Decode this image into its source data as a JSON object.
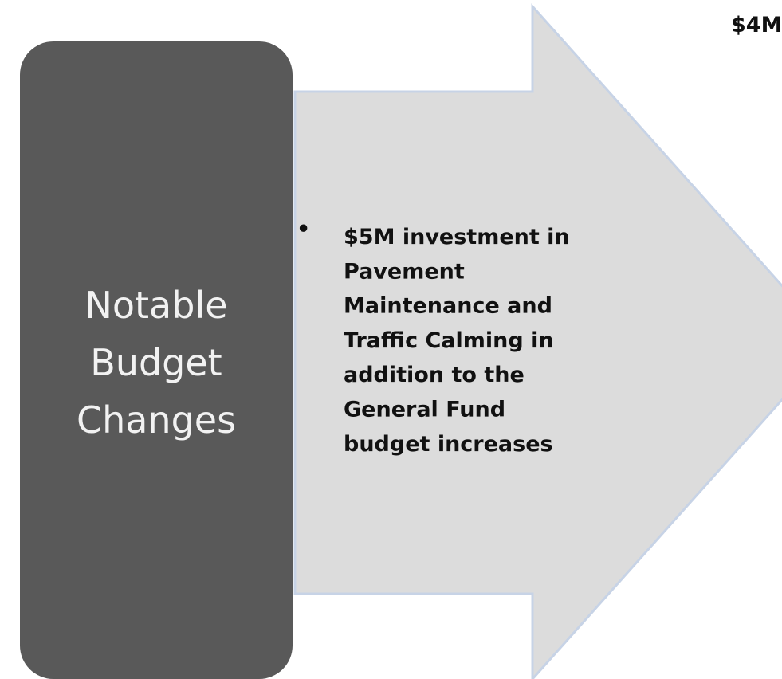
{
  "left_box": {
    "label_lines": [
      "Notable",
      "Budget",
      "Changes"
    ]
  },
  "arrow": {
    "bullet": "•",
    "text_lines": [
      "$5M investment in",
      "Pavement",
      "Maintenance and",
      "Traffic Calming in",
      "addition to the",
      "General Fund",
      "budget increases"
    ]
  },
  "next_item": {
    "text": "$4M"
  }
}
